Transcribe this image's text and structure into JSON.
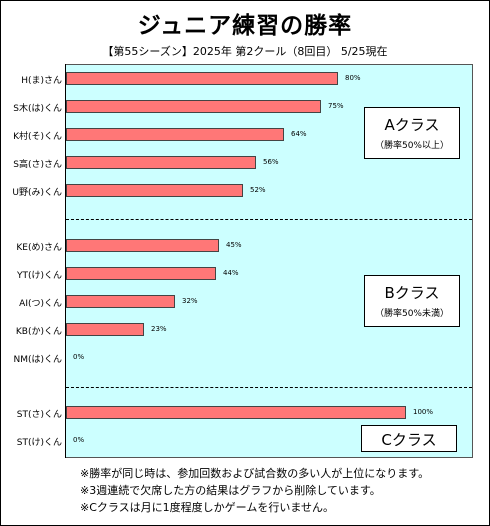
{
  "title": "ジュニア練習の勝率",
  "subtitle": "【第55シーズン】2025年 第2クール（8回目） 5/25現在",
  "chart_data": {
    "type": "bar",
    "orientation": "horizontal",
    "xlim": [
      0,
      100
    ],
    "grid": false,
    "groups": [
      {
        "label": "Aクラス",
        "note": "（勝率50%以上）",
        "categories": [
          "H(ま)さん",
          "S木(は)くん",
          "K村(そ)くん",
          "S高(さ)さん",
          "U野(み)くん"
        ],
        "values": [
          80,
          75,
          64,
          56,
          52
        ],
        "value_labels": [
          "80%",
          "75%",
          "64%",
          "56%",
          "52%"
        ]
      },
      {
        "label": "Bクラス",
        "note": "（勝率50%未満）",
        "categories": [
          "KE(め)さん",
          "YT(け)くん",
          "AI(つ)くん",
          "KB(か)くん",
          "NM(は)くん"
        ],
        "values": [
          45,
          44,
          32,
          23,
          0
        ],
        "value_labels": [
          "45%",
          "44%",
          "32%",
          "23%",
          "0%"
        ]
      },
      {
        "label": "Cクラス",
        "note": "",
        "categories": [
          "ST(さ)くん",
          "ST(け)くん"
        ],
        "values": [
          100,
          0
        ],
        "value_labels": [
          "100%",
          "0%"
        ]
      }
    ],
    "bar_color": "#ff7777",
    "plot_background": "#ccffff"
  },
  "notes": [
    "※勝率が同じ時は、参加回数および試合数の多い人が上位になります。",
    "※3週連続で欠席した方の結果はグラフから削除しています。",
    "※Cクラスは月に1度程度しかゲームを行いません。"
  ]
}
